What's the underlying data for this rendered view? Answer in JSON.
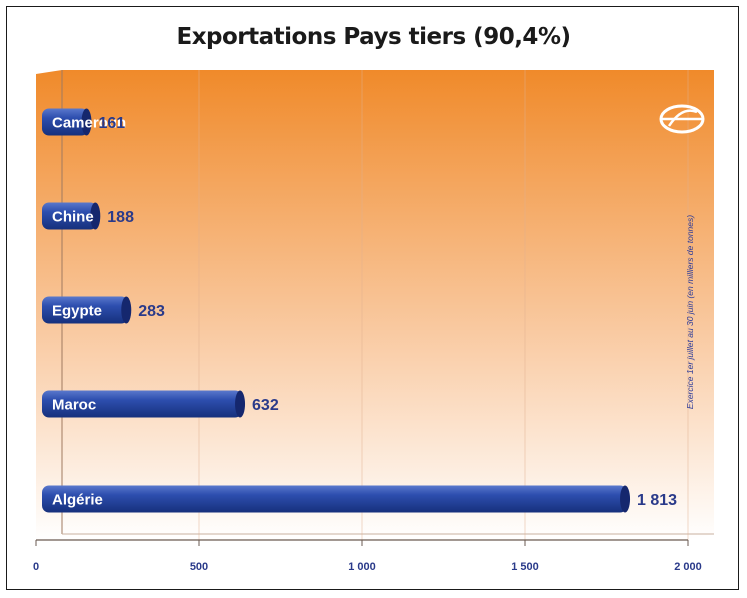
{
  "chart_data": {
    "type": "bar",
    "orientation": "horizontal",
    "title": "Exportations Pays tiers (90,4%)",
    "categories": [
      "Cameroun",
      "Chine",
      "Egypte",
      "Maroc",
      "Algérie"
    ],
    "values": [
      161,
      188,
      283,
      632,
      1813
    ],
    "value_labels": [
      "161",
      "188",
      "283",
      "632",
      "1 813"
    ],
    "xlim": [
      0,
      2000
    ],
    "xticks": [
      0,
      500,
      1000,
      1500,
      2000
    ],
    "xtick_labels": [
      "0",
      "500",
      "1 000",
      "1 500",
      "2 000"
    ],
    "note": "Exercice 1er juillet au 30 juin (en milliers de tonnes)",
    "grid": "vertical",
    "colors": {
      "bar": "#2a4aa8",
      "bar_dark": "#15276e",
      "bg_top": "#f08a2a",
      "bg_bottom": "#ffffff",
      "label": "#2a3a8a"
    },
    "logo": "olive-oil-logo"
  }
}
